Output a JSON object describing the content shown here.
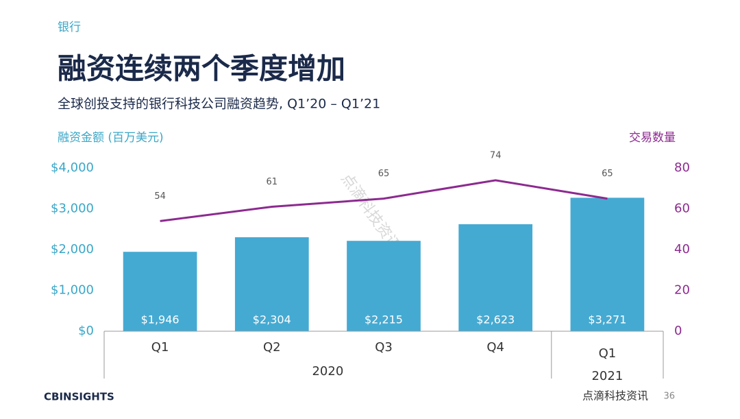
{
  "section": "银行",
  "chart_data": {
    "type": "bar",
    "title": "融资连续两个季度增加",
    "subtitle": "全球创投支持的银行科技公司融资趋势, Q1’20 –  Q1’21",
    "ylabel": "融资金额 (百万美元)",
    "y2label": "交易数量",
    "groups": [
      {
        "label": "2020",
        "categories": [
          "Q1",
          "Q2",
          "Q3",
          "Q4"
        ]
      },
      {
        "label": "2021",
        "categories": [
          "Q1"
        ]
      }
    ],
    "series": [
      {
        "type": "bar",
        "color": "#45aad2",
        "values": [
          1946,
          2304,
          2215,
          2623,
          3271
        ],
        "value_labels": [
          "$1,946",
          "$2,304",
          "$2,215",
          "$2,623",
          "$3,271"
        ]
      },
      {
        "type": "line",
        "axis": "y2",
        "color": "#8c2a8f",
        "values": [
          54,
          61,
          65,
          74,
          65
        ]
      }
    ],
    "ylim": [
      0,
      4000
    ],
    "yticks": [
      {
        "value": 0,
        "label": "$0"
      },
      {
        "value": 1000,
        "label": "$1,000"
      },
      {
        "value": 2000,
        "label": "$2,000"
      },
      {
        "value": 3000,
        "label": "$3,000"
      },
      {
        "value": 4000,
        "label": "$4,000"
      }
    ],
    "y2lim": [
      0,
      80
    ],
    "y2ticks": [
      0,
      20,
      40,
      60,
      80
    ]
  },
  "footer": {
    "brand": "CBINSIGHTS",
    "watermark": "点滴科技资讯",
    "page": "36"
  }
}
